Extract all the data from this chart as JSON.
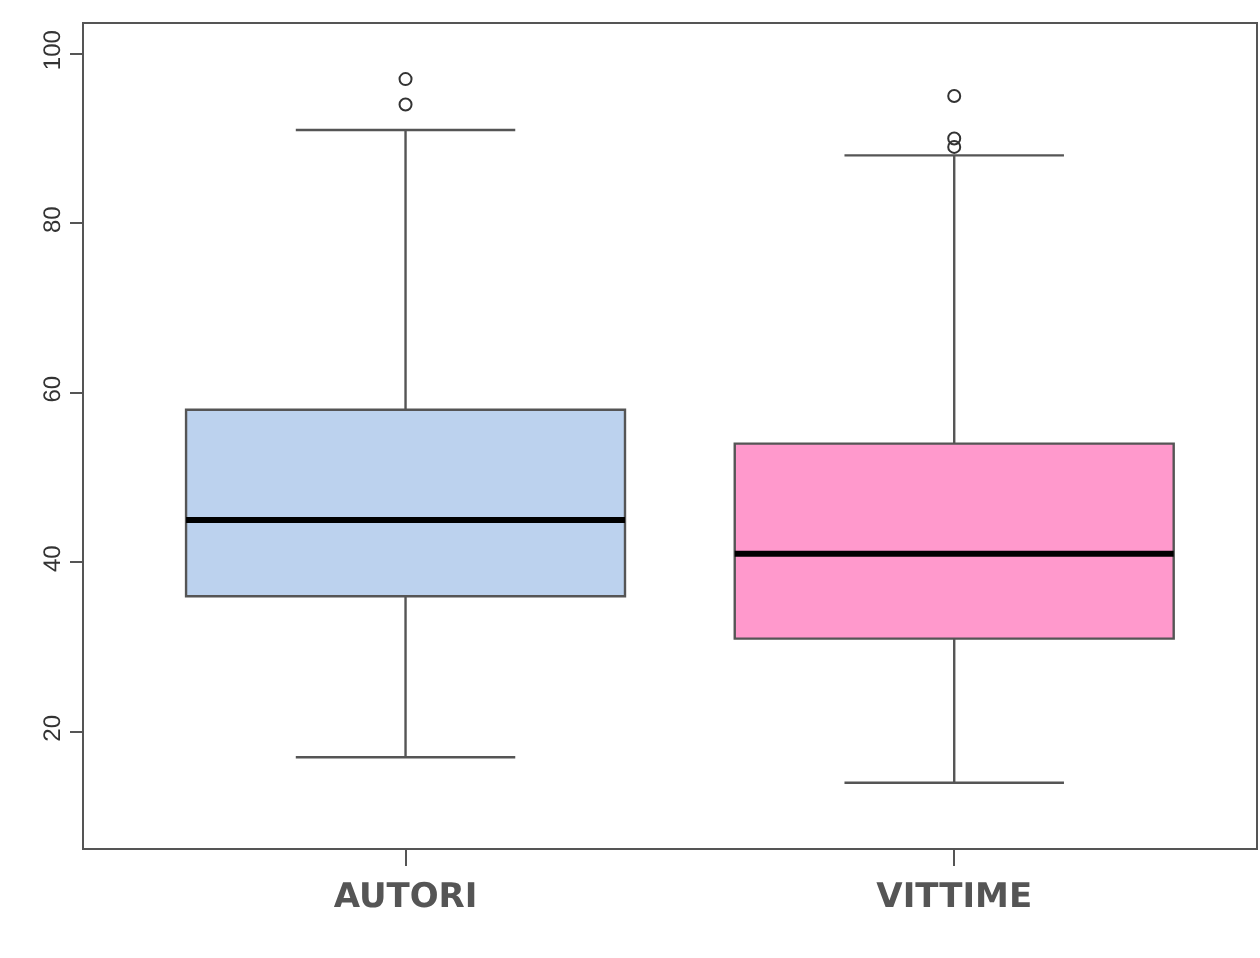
{
  "chart_data": {
    "type": "box",
    "categories": [
      "AUTORI",
      "VITTIME"
    ],
    "boxes": [
      {
        "low": 17,
        "q1": 36,
        "median": 45,
        "q3": 58,
        "high": 91,
        "outliers": [
          97,
          94
        ]
      },
      {
        "low": 14,
        "q1": 31,
        "median": 41,
        "q3": 54,
        "high": 88,
        "outliers": [
          95,
          90,
          89
        ]
      }
    ],
    "colors": [
      "#bcd2ee",
      "#ff99cc"
    ],
    "ylim": [
      6.3,
      103.5
    ],
    "yticks": [
      20,
      40,
      60,
      80,
      100
    ]
  }
}
